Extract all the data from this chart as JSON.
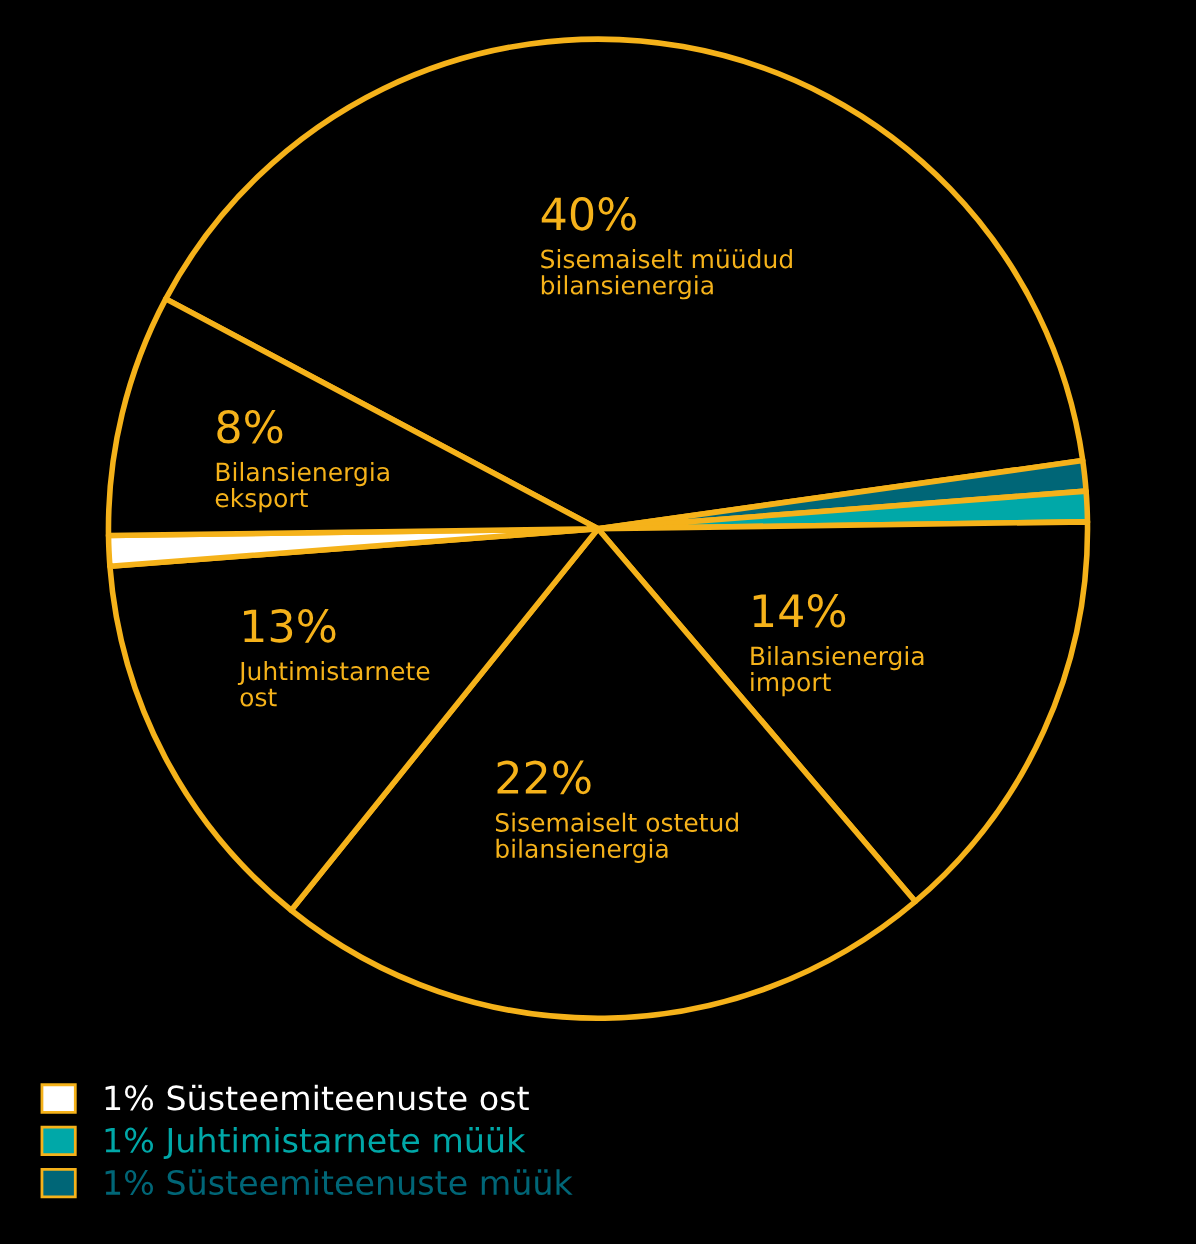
{
  "chart_data": {
    "type": "pie",
    "categories": [
      "Sisemaiselt müüdud bilansienergia",
      "Süsteemiteenuste müük",
      "Juhtimistarnete müük",
      "Bilansienergia import",
      "Sisemaiselt ostetud bilansienergia",
      "Juhtimistarnete ost",
      "Süsteemiteenuste ost",
      "Bilansienergia eksport"
    ],
    "values": [
      40,
      1,
      1,
      14,
      22,
      13,
      1,
      8
    ],
    "colors": [
      "#000000",
      "#006677",
      "#00a8a8",
      "#000000",
      "#000000",
      "#000000",
      "#ffffff",
      "#000000"
    ],
    "legend": "bottom left",
    "value_labels": [
      "40%",
      "1%",
      "1%",
      "14%",
      "22%",
      "13%",
      "1%",
      "8%"
    ]
  }
}
